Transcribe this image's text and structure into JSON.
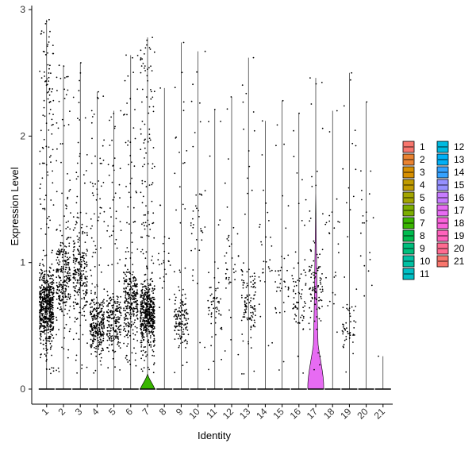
{
  "chart_data": {
    "type": "violin",
    "xlabel": "Identity",
    "ylabel": "Expression Level",
    "ylim": [
      0,
      3
    ],
    "yticks": [
      "0",
      "1",
      "2",
      "3"
    ],
    "grid": false,
    "legend_position": "right",
    "categories": [
      "1",
      "2",
      "3",
      "4",
      "5",
      "6",
      "7",
      "8",
      "9",
      "10",
      "11",
      "12",
      "13",
      "14",
      "15",
      "16",
      "17",
      "18",
      "19",
      "20",
      "21"
    ],
    "colors": [
      "#F8766D",
      "#EA8331",
      "#D89000",
      "#C09B00",
      "#A3A500",
      "#7CAE00",
      "#39B600",
      "#00BB4E",
      "#00BF7D",
      "#00C1A3",
      "#00BFC4",
      "#00BAE0",
      "#00B0F6",
      "#35A2FF",
      "#9590FF",
      "#C77CFF",
      "#E76BF3",
      "#FA62DB",
      "#FF62BC",
      "#FF6C91",
      "#F8766D"
    ],
    "max_values": [
      2.92,
      2.56,
      2.58,
      2.35,
      2.2,
      2.64,
      2.78,
      2.38,
      2.74,
      2.67,
      2.21,
      2.31,
      2.62,
      2.12,
      2.28,
      2.18,
      2.46,
      2.2,
      2.5,
      2.27,
      0.26
    ],
    "visible_dot_counts": [
      700,
      300,
      260,
      320,
      240,
      320,
      600,
      25,
      150,
      40,
      60,
      40,
      120,
      30,
      40,
      70,
      100,
      25,
      60,
      20,
      1
    ],
    "dot_center_levels": [
      0.65,
      0.9,
      0.9,
      0.5,
      0.55,
      0.7,
      0.6,
      1.0,
      0.55,
      1.2,
      0.7,
      1.0,
      0.7,
      1.0,
      0.9,
      0.75,
      0.8,
      1.0,
      0.5,
      1.2,
      0.26
    ],
    "violin_bulges": [
      0,
      0,
      0,
      0,
      0,
      0,
      0.85,
      0,
      0,
      0,
      0,
      0,
      0,
      0,
      0,
      0,
      1.0,
      0,
      0,
      0,
      0
    ],
    "legend": {
      "column1": [
        "1",
        "2",
        "3",
        "4",
        "5",
        "6",
        "7",
        "8",
        "9",
        "10",
        "11"
      ],
      "column2": [
        "12",
        "13",
        "14",
        "15",
        "16",
        "17",
        "18",
        "19",
        "20",
        "21"
      ]
    }
  }
}
